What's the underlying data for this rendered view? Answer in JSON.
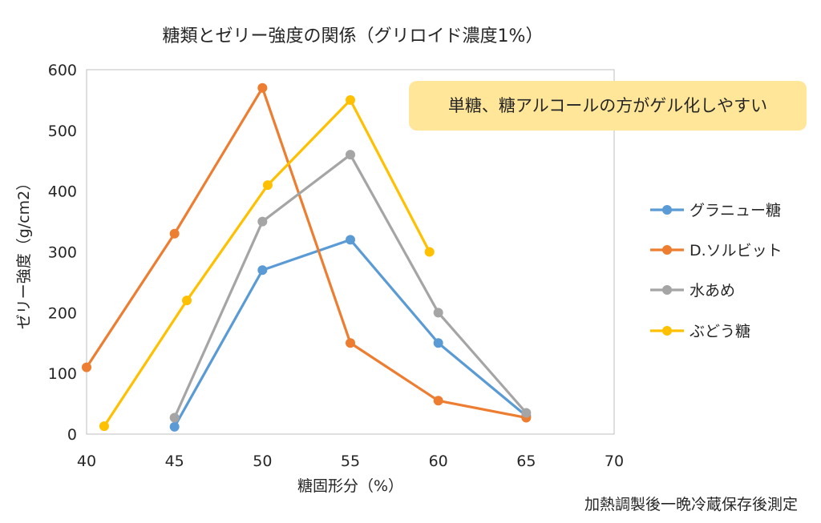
{
  "chart_data": {
    "type": "line",
    "title": "糖類とゼリー強度の関係（グリロイド濃度1%）",
    "xlabel": "糖固形分（%）",
    "ylabel": "ゼリー強度（g/cm2）",
    "xlim": [
      40,
      70
    ],
    "ylim": [
      0,
      600
    ],
    "xticks": [
      40,
      45,
      50,
      55,
      60,
      65,
      70
    ],
    "yticks": [
      0,
      100,
      200,
      300,
      400,
      500,
      600
    ],
    "grid": false,
    "legend_position": "right",
    "annotation": "単糖、糖アルコールの方がゲル化しやすい",
    "footnote": "加熱調製後一晩冷蔵保存後測定",
    "series": [
      {
        "name": "グラニュー糖",
        "color": "#5B9BD5",
        "points": [
          [
            45,
            12
          ],
          [
            50,
            270
          ],
          [
            55,
            320
          ],
          [
            60,
            150
          ],
          [
            65,
            30
          ]
        ]
      },
      {
        "name": "D.ソルビット",
        "color": "#ED7D31",
        "points": [
          [
            40,
            110
          ],
          [
            45,
            330
          ],
          [
            50,
            570
          ],
          [
            55,
            150
          ],
          [
            60,
            55
          ],
          [
            65,
            27
          ]
        ]
      },
      {
        "name": "水あめ",
        "color": "#A5A5A5",
        "points": [
          [
            45,
            27
          ],
          [
            50,
            350
          ],
          [
            55,
            460
          ],
          [
            60,
            200
          ],
          [
            65,
            35
          ]
        ]
      },
      {
        "name": "ぶどう糖",
        "color": "#FFC000",
        "points": [
          [
            41,
            13
          ],
          [
            45.7,
            220
          ],
          [
            50.3,
            410
          ],
          [
            55,
            550
          ],
          [
            59.5,
            300
          ]
        ]
      }
    ]
  },
  "colors": {
    "annotation_bg": "#FFE699",
    "axis": "#7F7F7F"
  }
}
